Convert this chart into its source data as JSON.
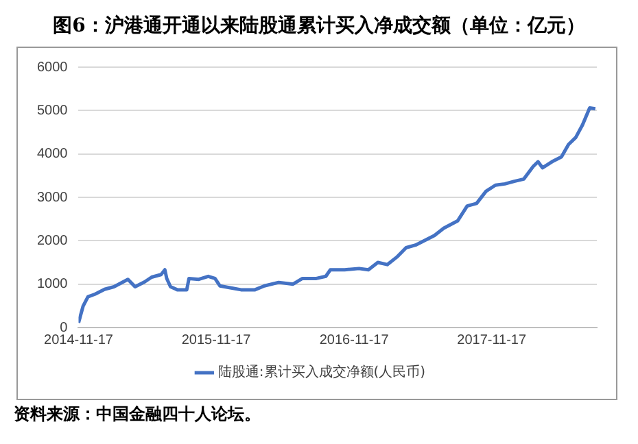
{
  "chart_data": {
    "type": "line",
    "title": "图6：沪港通开通以来陆股通累计买入净成交额（单位：亿元）",
    "x": [
      "2014-11-17",
      "2014-11-29",
      "2014-12-12",
      "2014-12-31",
      "2015-01-25",
      "2015-02-19",
      "2015-03-28",
      "2015-04-16",
      "2015-05-11",
      "2015-05-30",
      "2015-06-24",
      "2015-07-04",
      "2015-07-09",
      "2015-07-19",
      "2015-08-06",
      "2015-08-31",
      "2015-09-06",
      "2015-10-02",
      "2015-10-27",
      "2015-11-14",
      "2015-11-27",
      "2015-12-22",
      "2016-01-22",
      "2016-02-28",
      "2016-03-24",
      "2016-05-01",
      "2016-06-08",
      "2016-07-03",
      "2016-08-09",
      "2016-09-03",
      "2016-09-15",
      "2016-10-23",
      "2016-11-30",
      "2016-12-25",
      "2017-01-19",
      "2017-02-13",
      "2017-03-10",
      "2017-04-04",
      "2017-04-29",
      "2017-05-24",
      "2017-06-18",
      "2017-07-13",
      "2017-08-19",
      "2017-09-13",
      "2017-10-08",
      "2017-11-02",
      "2017-11-27",
      "2017-12-22",
      "2018-01-16",
      "2018-02-10",
      "2018-03-07",
      "2018-03-20",
      "2018-04-01",
      "2018-04-26",
      "2018-05-21",
      "2018-06-09",
      "2018-06-28",
      "2018-07-16",
      "2018-08-04",
      "2018-08-19"
    ],
    "series": [
      {
        "name": "陆股通:累计买入成交净额(人民币)",
        "color": "#4472c4",
        "values": [
          110,
          490,
          710,
          770,
          880,
          940,
          1110,
          940,
          1050,
          1160,
          1220,
          1330,
          1130,
          940,
          870,
          870,
          1130,
          1110,
          1180,
          1130,
          960,
          920,
          870,
          870,
          960,
          1040,
          1000,
          1130,
          1130,
          1180,
          1330,
          1330,
          1360,
          1330,
          1500,
          1450,
          1620,
          1840,
          1900,
          2010,
          2120,
          2290,
          2460,
          2800,
          2860,
          3140,
          3280,
          3310,
          3370,
          3420,
          3710,
          3820,
          3680,
          3820,
          3930,
          4220,
          4380,
          4670,
          5060,
          5040
        ]
      }
    ],
    "xlim": [
      "2014-11-17",
      "2018-08-23"
    ],
    "xticks": [
      "2014-11-17",
      "2015-11-17",
      "2016-11-17",
      "2017-11-17"
    ],
    "ylim": [
      0,
      6000
    ],
    "yticks": [
      0,
      1000,
      2000,
      3000,
      4000,
      5000,
      6000
    ],
    "grid": "y",
    "legend": "bottom",
    "marker": "none",
    "line_style": "solid",
    "annotations": [
      "资料来源：中国金融四十人论坛。"
    ]
  }
}
